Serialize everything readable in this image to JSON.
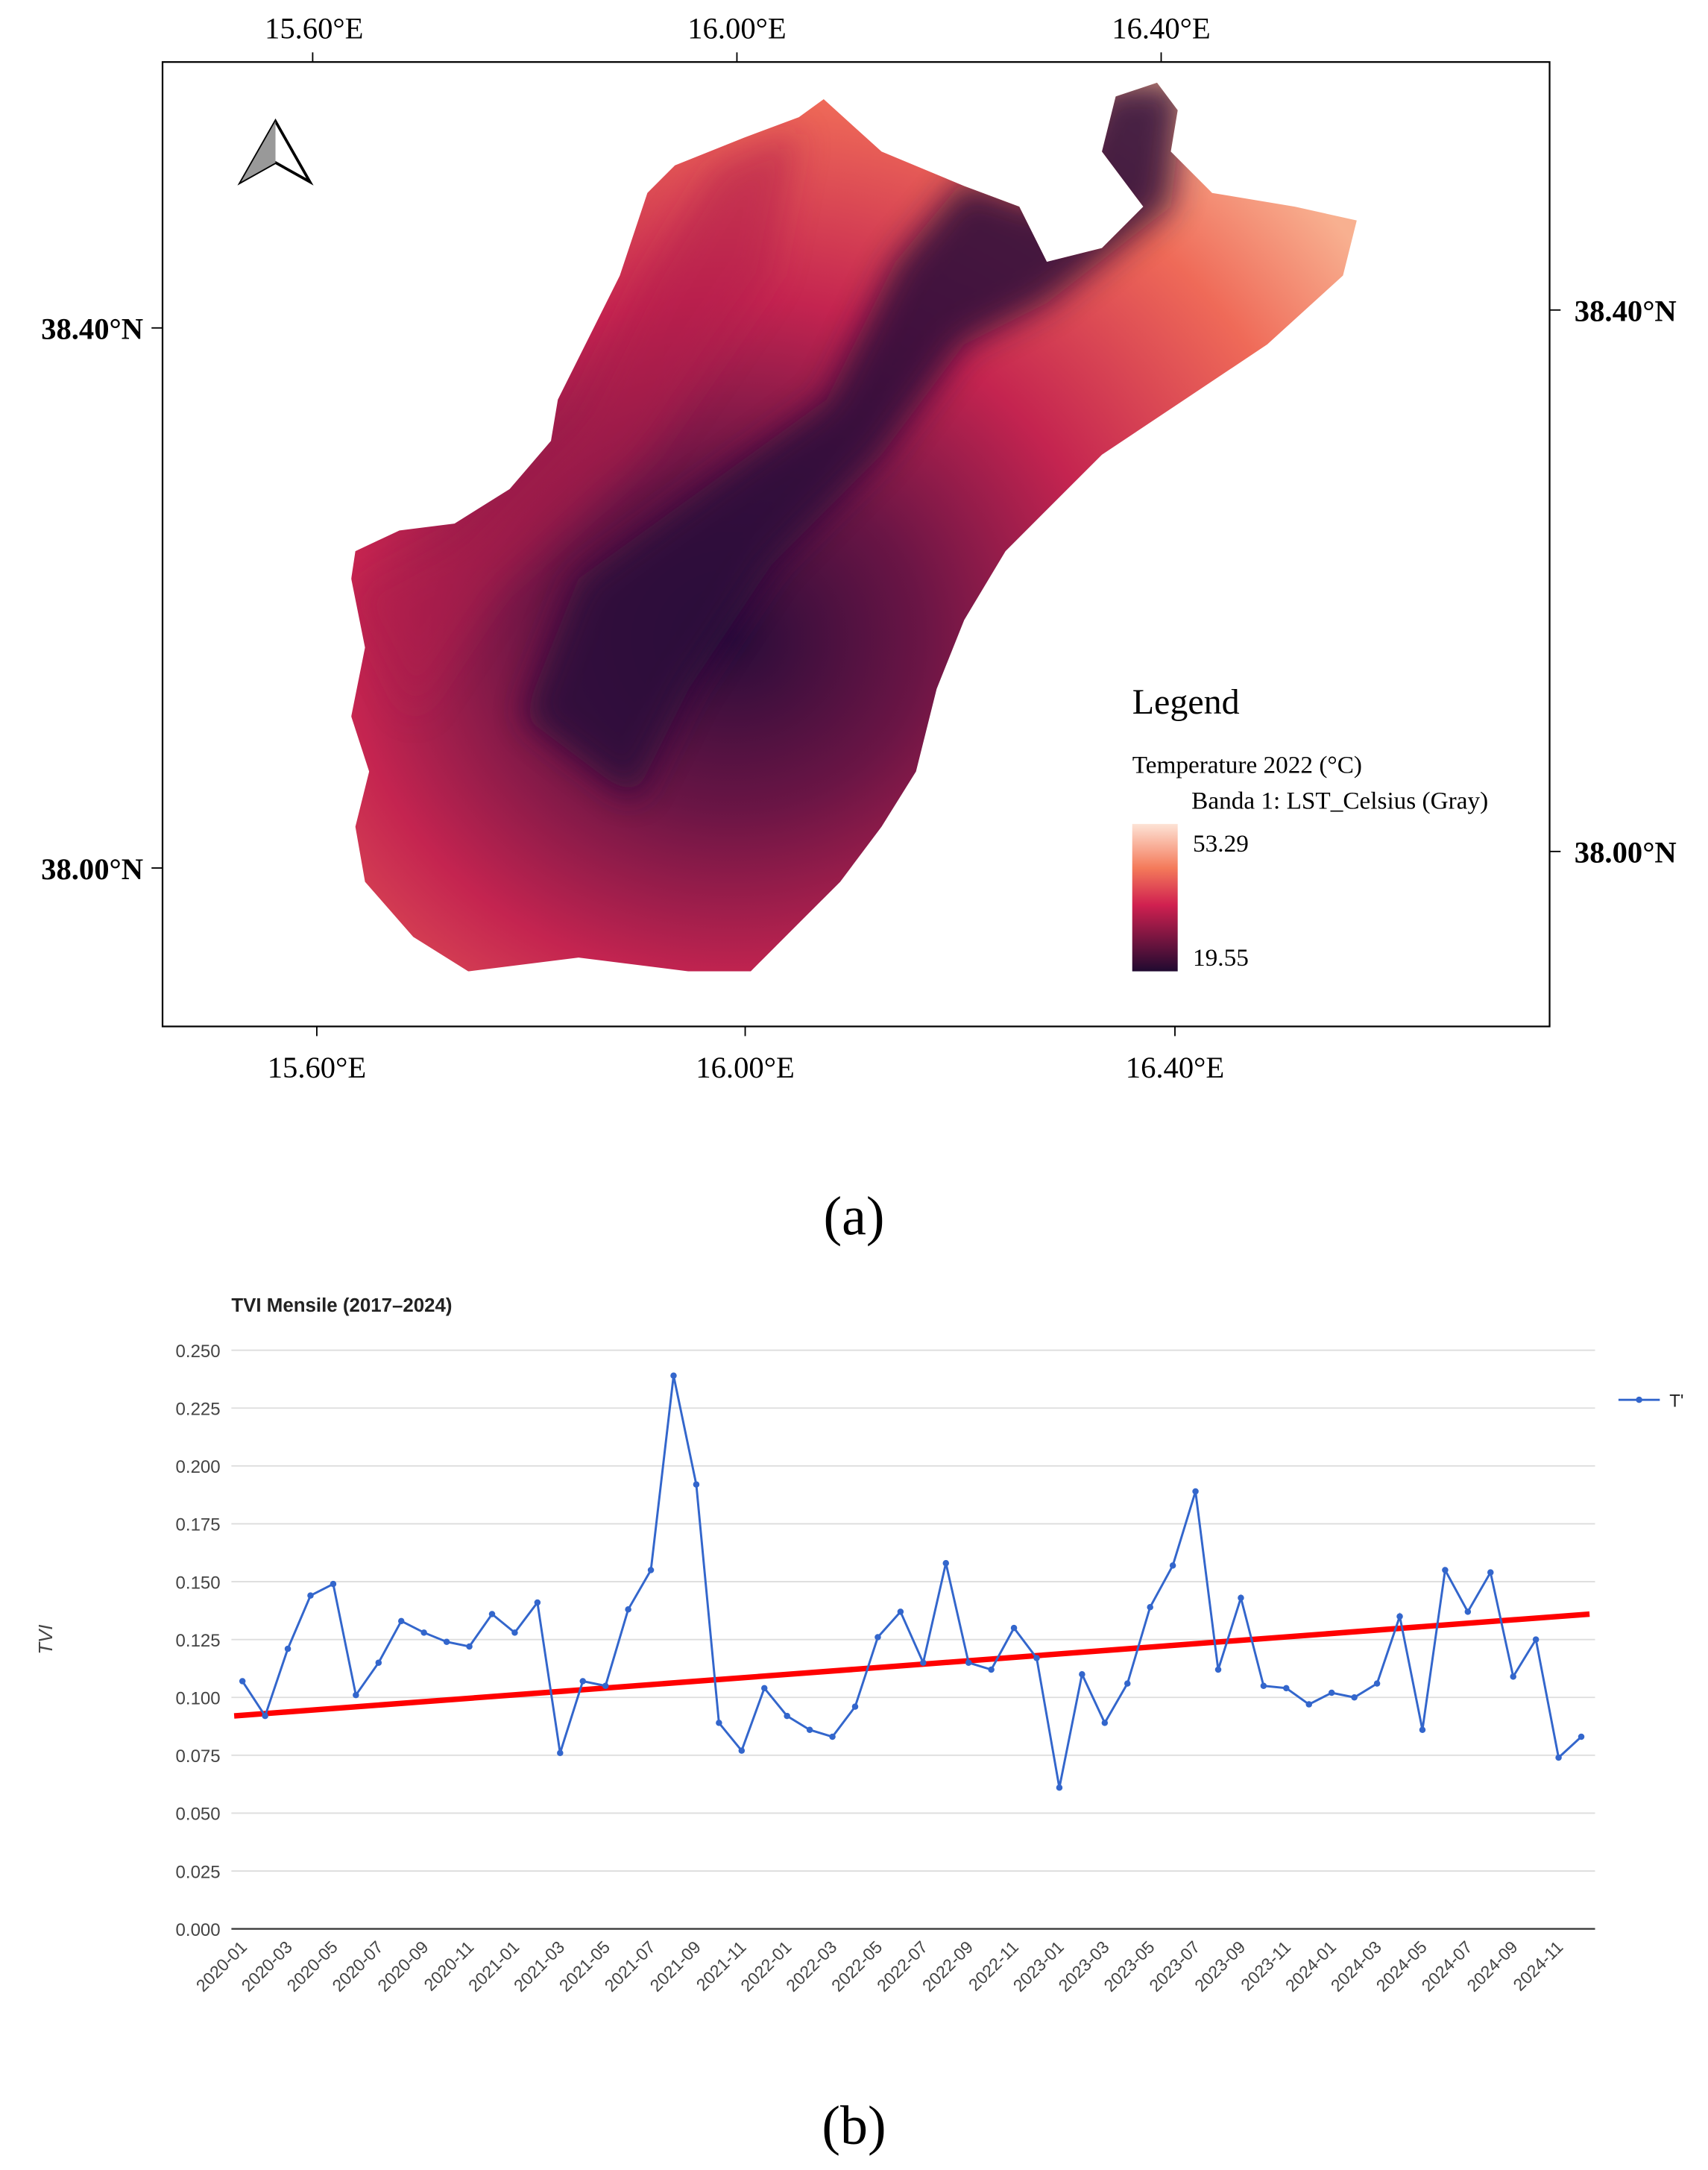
{
  "map": {
    "lon_labels": [
      "15.60°E",
      "16.00°E",
      "16.40°E"
    ],
    "lat_labels": [
      "38.40°N",
      "38.00°N"
    ],
    "legend": {
      "title": "Legend",
      "subtitle": "Temperature 2022 (°C)",
      "band": "Banda 1: LST_Celsius (Gray)",
      "max": 53.29,
      "min": 19.55
    }
  },
  "captions": [
    "(a)",
    "(b)"
  ],
  "chart_data": {
    "type": "line",
    "title": "TVI Mensile (2017–2024)",
    "y_label": "TVI",
    "categories": [
      "2020-01",
      null,
      "2020-03",
      null,
      "2020-05",
      null,
      "2020-07",
      null,
      "2020-09",
      null,
      "2020-11",
      null,
      "2021-01",
      null,
      "2021-03",
      null,
      "2021-05",
      null,
      "2021-07",
      null,
      "2021-09",
      null,
      "2021-11",
      null,
      "2022-01",
      null,
      "2022-03",
      null,
      "2022-05",
      null,
      "2022-07",
      null,
      "2022-09",
      null,
      "2022-11",
      null,
      "2023-01",
      null,
      "2023-03",
      null,
      "2023-05",
      null,
      "2023-07",
      null,
      "2023-09",
      null,
      "2023-11",
      null,
      "2024-01",
      null,
      "2024-03",
      null,
      "2024-05",
      null,
      "2024-07",
      null,
      "2024-09",
      null,
      "2024-11",
      null
    ],
    "series": [
      {
        "name": "T'",
        "color": "#3366cc",
        "values": [
          0.107,
          0.092,
          0.121,
          0.144,
          0.149,
          0.101,
          0.115,
          0.133,
          0.128,
          0.124,
          0.122,
          0.136,
          0.128,
          0.141,
          0.076,
          0.107,
          0.105,
          0.138,
          0.155,
          0.239,
          0.192,
          0.089,
          0.077,
          0.104,
          0.092,
          0.086,
          0.083,
          0.096,
          0.126,
          0.137,
          0.115,
          0.158,
          0.115,
          0.112,
          0.13,
          0.117,
          0.061,
          0.11,
          0.089,
          0.106,
          0.139,
          0.157,
          0.189,
          0.112,
          0.143,
          0.105,
          0.104,
          0.097,
          0.102,
          0.1,
          0.106,
          0.135,
          0.086,
          0.155,
          0.137,
          0.154,
          0.109,
          0.125,
          0.074,
          0.083
        ]
      }
    ],
    "trend": {
      "color": "#ff0000",
      "values": [
        0.092,
        0.136
      ]
    },
    "ylim": [
      0,
      0.25
    ],
    "yticks": [
      {
        "value": 0,
        "label": "0.000"
      },
      {
        "value": 0.025,
        "label": "0.025"
      },
      {
        "value": 0.05,
        "label": "0.050"
      },
      {
        "value": 0.075,
        "label": "0.075"
      },
      {
        "value": 0.1,
        "label": "0.100"
      },
      {
        "value": 0.125,
        "label": "0.125"
      },
      {
        "value": 0.15,
        "label": "0.150"
      },
      {
        "value": 0.175,
        "label": "0.175"
      },
      {
        "value": 0.2,
        "label": "0.200"
      },
      {
        "value": 0.225,
        "label": "0.225"
      },
      {
        "value": 0.25,
        "label": "0.250"
      }
    ],
    "grid": true,
    "legend": "top-right"
  }
}
